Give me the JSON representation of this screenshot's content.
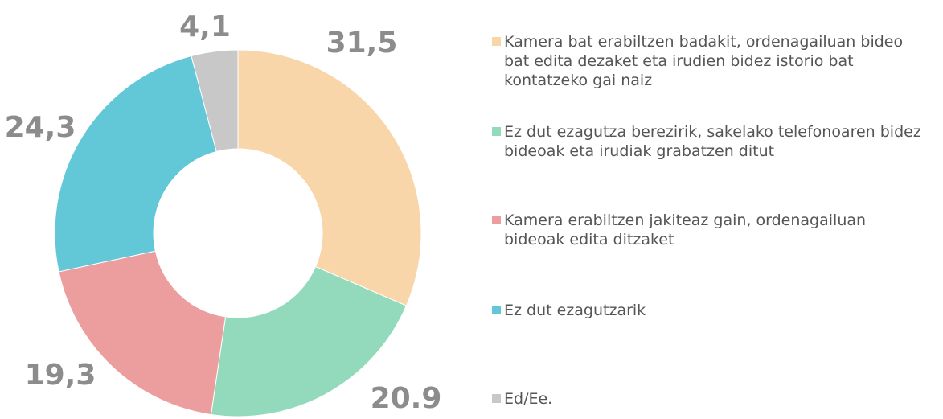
{
  "chart_data": {
    "type": "donut",
    "categories": [
      "Kamera bat erabiltzen badakit, ordenagailuan bideo bat edita dezaket eta irudien bidez istorio bat kontatzeko gai naiz",
      "Ez dut ezagutza berezirik, sakelako telefonoaren bidez bideoak eta irudiak grabatzen ditut",
      "Kamera erabiltzen jakiteaz gain, ordenagailuan bideoak edita ditzaket",
      "Ez dut ezagutzarik",
      "Ed/Ee."
    ],
    "values": [
      31.5,
      20.9,
      19.3,
      24.3,
      4.1
    ],
    "value_labels": [
      "31,5",
      "20.9",
      "19,3",
      "24,3",
      "4,1"
    ],
    "colors": [
      "#f9d6a9",
      "#92dabb",
      "#ec9e9e",
      "#62c8d8",
      "#c8c8c8"
    ]
  }
}
